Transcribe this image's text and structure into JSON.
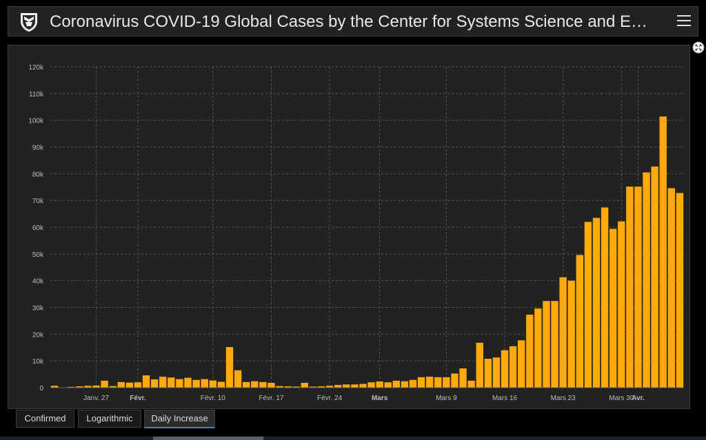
{
  "header": {
    "title": "Coronavirus COVID-19 Global Cases by the Center for Systems Science and E…"
  },
  "colors": {
    "bar": "#FFAA0A",
    "grid": "#555555",
    "axis_text": "#bdbdbd",
    "panel": "#222222",
    "tab_active_border": "#1e8fe6"
  },
  "tabs": [
    {
      "label": "Confirmed",
      "active": false
    },
    {
      "label": "Logarithmic",
      "active": false
    },
    {
      "label": "Daily Increase",
      "active": true
    }
  ],
  "chart_data": {
    "type": "bar",
    "title": "",
    "xlabel": "",
    "ylabel": "",
    "ylim": [
      0,
      120000
    ],
    "y_ticks": [
      0,
      10000,
      20000,
      30000,
      40000,
      50000,
      60000,
      70000,
      80000,
      90000,
      100000,
      110000,
      120000
    ],
    "y_tick_labels": [
      "0",
      "10k",
      "20k",
      "30k",
      "40k",
      "50k",
      "60k",
      "70k",
      "80k",
      "90k",
      "100k",
      "110k",
      "120k"
    ],
    "grid": true,
    "x_ticks": [
      {
        "label": "Janv. 27",
        "index": 5,
        "bold": false
      },
      {
        "label": "Févr.",
        "index": 10,
        "bold": true
      },
      {
        "label": "Févr. 10",
        "index": 19,
        "bold": false
      },
      {
        "label": "Févr. 17",
        "index": 26,
        "bold": false
      },
      {
        "label": "Févr. 24",
        "index": 33,
        "bold": false
      },
      {
        "label": "Mars",
        "index": 39,
        "bold": true
      },
      {
        "label": "Mars 9",
        "index": 47,
        "bold": false
      },
      {
        "label": "Mars 16",
        "index": 54,
        "bold": false
      },
      {
        "label": "Mars 23",
        "index": 61,
        "bold": false
      },
      {
        "label": "Mars 30",
        "index": 68,
        "bold": false
      },
      {
        "label": "Avr.",
        "index": 70,
        "bold": true
      }
    ],
    "series": [
      {
        "name": "",
        "values": [
          700,
          100,
          300,
          500,
          700,
          800,
          2600,
          600,
          2100,
          1900,
          2000,
          4600,
          3100,
          4100,
          3800,
          3200,
          3700,
          2900,
          3200,
          2700,
          2200,
          15200,
          6500,
          2100,
          2400,
          2100,
          1800,
          600,
          500,
          400,
          1800,
          400,
          500,
          700,
          1000,
          1200,
          1200,
          1400,
          2000,
          2300,
          2000,
          2600,
          2400,
          2900,
          3900,
          4100,
          3900,
          3900,
          5300,
          7200,
          2600,
          16800,
          10800,
          11300,
          14000,
          15500,
          17700,
          27300,
          29600,
          32400,
          32400,
          41300,
          40000,
          49600,
          62000,
          63500,
          67400,
          59400,
          62200,
          75200,
          75200,
          80500,
          82700,
          101400,
          74600,
          72800
        ]
      }
    ]
  }
}
